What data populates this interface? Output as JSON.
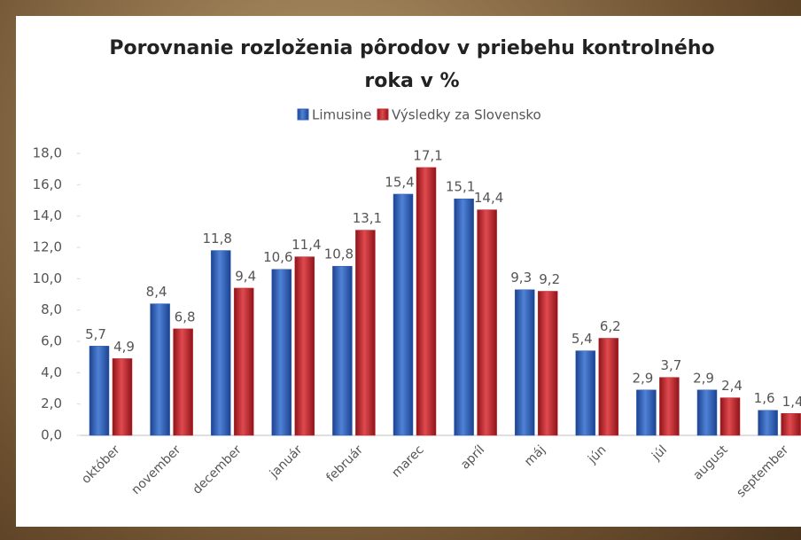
{
  "chart_data": {
    "type": "bar",
    "title": "Porovnanie rozloženia pôrodov v priebehu kontrolného roka v %",
    "categories": [
      "október",
      "november",
      "december",
      "január",
      "február",
      "marec",
      "apríl",
      "máj",
      "jún",
      "júl",
      "august",
      "september"
    ],
    "series": [
      {
        "name": "Limusine",
        "color": "#2e5fb8",
        "values": [
          5.7,
          8.4,
          11.8,
          10.6,
          10.8,
          15.4,
          15.1,
          9.3,
          5.4,
          2.9,
          2.9,
          1.6
        ],
        "value_labels": [
          "5,7",
          "8,4",
          "11,8",
          "10,6",
          "10,8",
          "15,4",
          "15,1",
          "9,3",
          "5,4",
          "2,9",
          "2,9",
          "1,6"
        ]
      },
      {
        "name": "Výsledky za Slovensko",
        "color": "#c3262e",
        "values": [
          4.9,
          6.8,
          9.4,
          11.4,
          13.1,
          17.1,
          14.4,
          9.2,
          6.2,
          3.7,
          2.4,
          1.4
        ],
        "value_labels": [
          "4,9",
          "6,8",
          "9,4",
          "11,4",
          "13,1",
          "17,1",
          "14,4",
          "9,2",
          "6,2",
          "3,7",
          "2,4",
          "1,4"
        ]
      }
    ],
    "ylim": [
      0,
      18
    ],
    "yticks": [
      {
        "value": 0,
        "label": "0,0"
      },
      {
        "value": 2,
        "label": "2,0"
      },
      {
        "value": 4,
        "label": "4,0"
      },
      {
        "value": 6,
        "label": "6,0"
      },
      {
        "value": 8,
        "label": "8,0"
      },
      {
        "value": 10,
        "label": "10,0"
      },
      {
        "value": 12,
        "label": "12,0"
      },
      {
        "value": 14,
        "label": "14,0"
      },
      {
        "value": 16,
        "label": "16,0"
      },
      {
        "value": 18,
        "label": "18,0"
      }
    ],
    "legend": "top"
  }
}
